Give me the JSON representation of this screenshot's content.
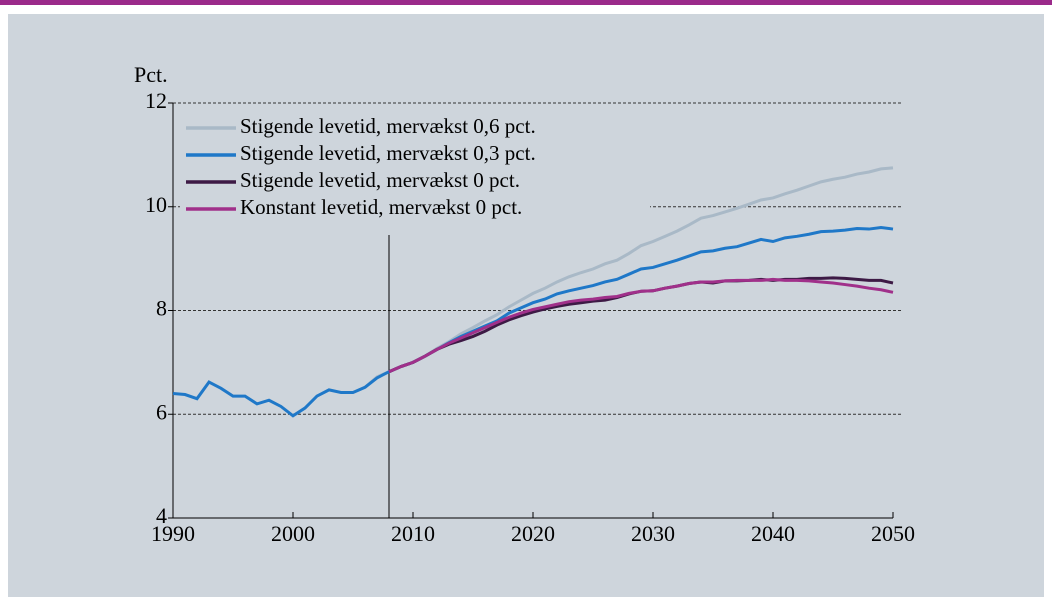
{
  "chart_data": {
    "type": "line",
    "ylabel": "Pct.",
    "x": [
      1990,
      1991,
      1992,
      1993,
      1994,
      1995,
      1996,
      1997,
      1998,
      1999,
      2000,
      2001,
      2002,
      2003,
      2004,
      2005,
      2006,
      2007,
      2008,
      2009,
      2010,
      2011,
      2012,
      2013,
      2014,
      2015,
      2016,
      2017,
      2018,
      2019,
      2020,
      2021,
      2022,
      2023,
      2024,
      2025,
      2026,
      2027,
      2028,
      2029,
      2030,
      2031,
      2032,
      2033,
      2034,
      2035,
      2036,
      2037,
      2038,
      2039,
      2040,
      2041,
      2042,
      2043,
      2044,
      2045,
      2046,
      2047,
      2048,
      2049,
      2050
    ],
    "series": [
      {
        "name": "Stigende levetid, mervækst 0,6 pct.",
        "color": "#a9b9c7",
        "values": [
          null,
          null,
          null,
          null,
          null,
          null,
          null,
          null,
          null,
          null,
          null,
          null,
          null,
          null,
          null,
          null,
          6.52,
          6.72,
          6.82,
          6.92,
          7.0,
          7.12,
          7.27,
          7.4,
          7.55,
          7.67,
          7.8,
          7.92,
          8.07,
          8.2,
          8.33,
          8.43,
          8.55,
          8.65,
          8.73,
          8.8,
          8.9,
          8.97,
          9.1,
          9.25,
          9.33,
          9.43,
          9.53,
          9.65,
          9.78,
          9.83,
          9.9,
          9.97,
          10.05,
          10.13,
          10.17,
          10.25,
          10.32,
          10.4,
          10.48,
          10.53,
          10.57,
          10.63,
          10.67,
          10.73,
          10.75
        ]
      },
      {
        "name": "Stigende levetid, mervækst 0,3 pct.",
        "color": "#1f78c8",
        "values": [
          6.4,
          6.38,
          6.3,
          6.62,
          6.5,
          6.35,
          6.35,
          6.2,
          6.27,
          6.15,
          5.97,
          6.12,
          6.35,
          6.47,
          6.42,
          6.42,
          6.52,
          6.7,
          6.82,
          6.92,
          7.0,
          7.12,
          7.25,
          7.38,
          7.5,
          7.6,
          7.7,
          7.8,
          7.95,
          8.05,
          8.15,
          8.22,
          8.32,
          8.38,
          8.43,
          8.48,
          8.55,
          8.6,
          8.7,
          8.8,
          8.83,
          8.9,
          8.97,
          9.05,
          9.13,
          9.15,
          9.2,
          9.23,
          9.3,
          9.37,
          9.33,
          9.4,
          9.43,
          9.47,
          9.52,
          9.53,
          9.55,
          9.58,
          9.57,
          9.6,
          9.57
        ]
      },
      {
        "name": "Stigende levetid, mervækst 0 pct.",
        "color": "#3d1a45",
        "values": [
          null,
          null,
          null,
          null,
          null,
          null,
          null,
          null,
          null,
          null,
          null,
          null,
          null,
          null,
          null,
          null,
          null,
          null,
          6.82,
          6.92,
          7.0,
          7.12,
          7.25,
          7.35,
          7.42,
          7.5,
          7.6,
          7.72,
          7.82,
          7.9,
          7.97,
          8.03,
          8.08,
          8.12,
          8.15,
          8.18,
          8.2,
          8.25,
          8.32,
          8.37,
          8.38,
          8.43,
          8.47,
          8.52,
          8.55,
          8.53,
          8.57,
          8.57,
          8.58,
          8.6,
          8.58,
          8.6,
          8.6,
          8.62,
          8.62,
          8.63,
          8.62,
          8.6,
          8.58,
          8.58,
          8.53
        ]
      },
      {
        "name": "Konstant levetid, mervækst 0 pct.",
        "color": "#a0308a",
        "values": [
          null,
          null,
          null,
          null,
          null,
          null,
          null,
          null,
          null,
          null,
          null,
          null,
          null,
          null,
          null,
          null,
          null,
          null,
          6.82,
          6.92,
          7.0,
          7.12,
          7.25,
          7.37,
          7.47,
          7.57,
          7.67,
          7.77,
          7.87,
          7.95,
          8.02,
          8.07,
          8.12,
          8.17,
          8.2,
          8.22,
          8.25,
          8.27,
          8.33,
          8.37,
          8.38,
          8.43,
          8.47,
          8.52,
          8.55,
          8.55,
          8.57,
          8.58,
          8.58,
          8.58,
          8.6,
          8.58,
          8.58,
          8.57,
          8.55,
          8.53,
          8.5,
          8.47,
          8.43,
          8.4,
          8.35
        ]
      }
    ],
    "xlim": [
      1990,
      2050
    ],
    "xticks": [
      1990,
      2000,
      2010,
      2020,
      2030,
      2040,
      2050
    ],
    "ylim": [
      4,
      12
    ],
    "yticks": [
      4,
      6,
      8,
      10,
      12
    ],
    "grid": true,
    "legend": "upper left",
    "vline": 2008
  }
}
